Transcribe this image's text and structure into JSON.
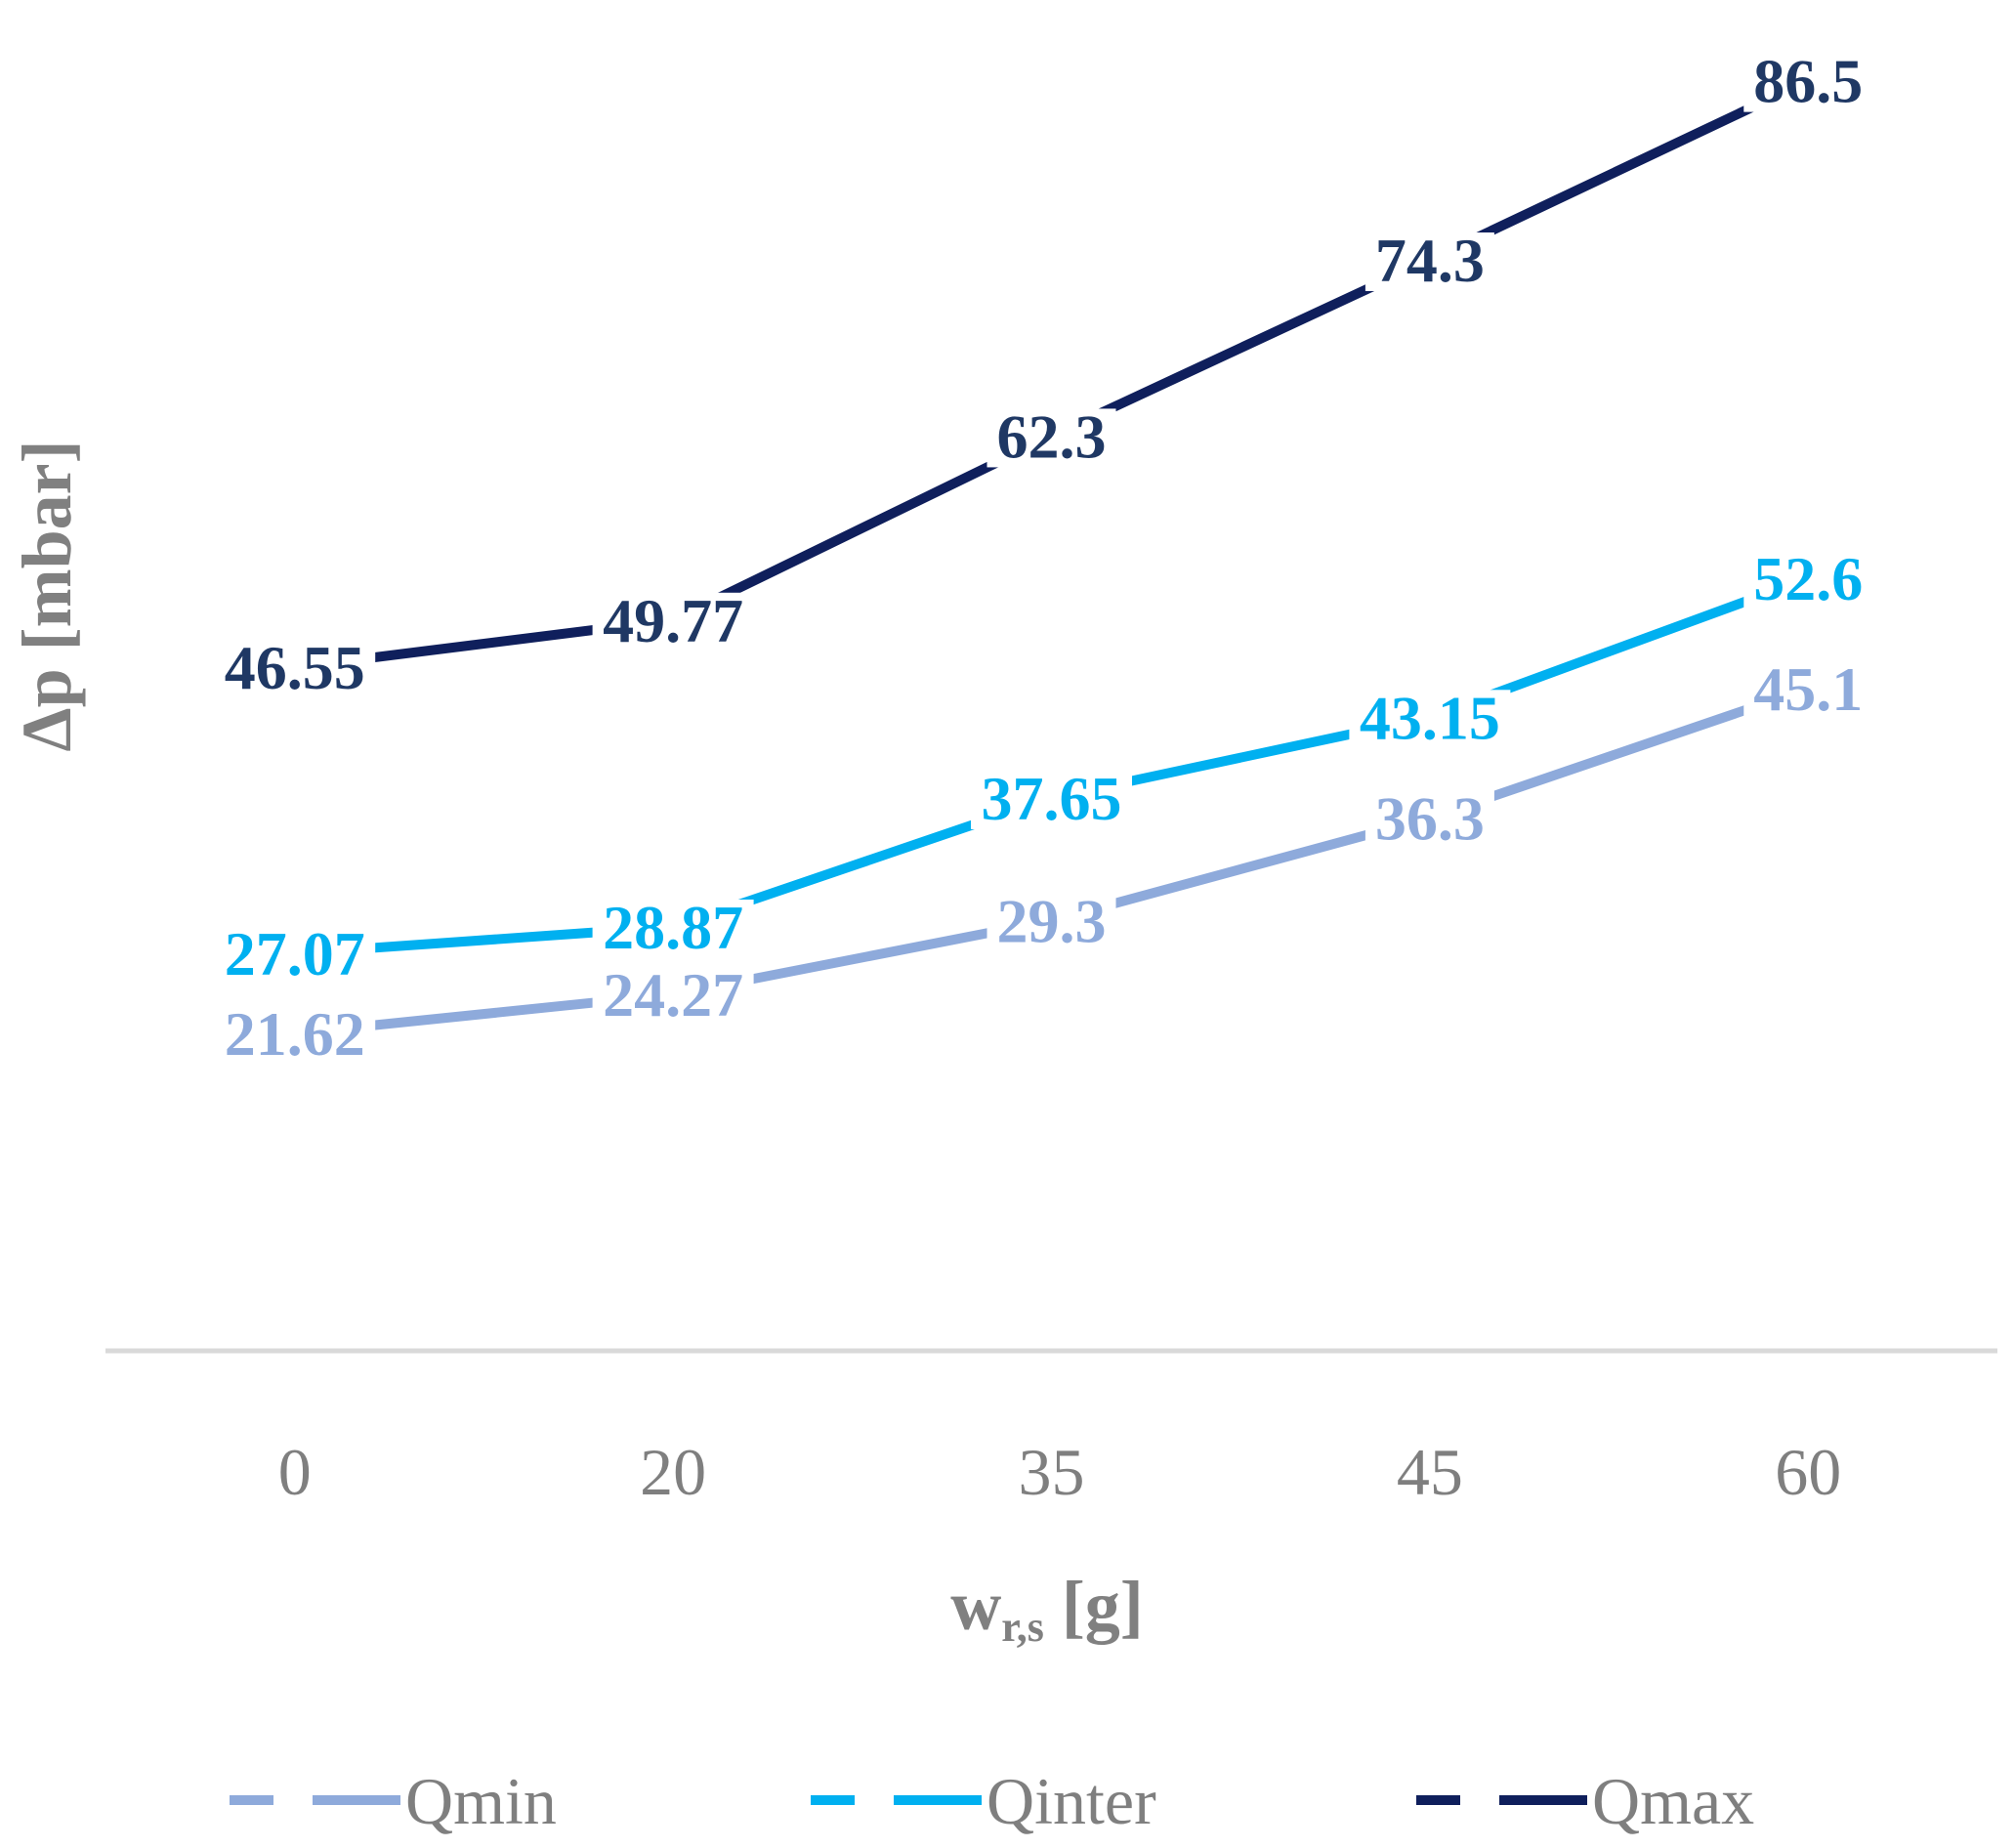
{
  "chart_data": {
    "type": "line",
    "title": "",
    "categories": [
      "0",
      "20",
      "35",
      "45",
      "60"
    ],
    "series": [
      {
        "name": "Qmin",
        "color": "#8eaadb",
        "label_color": "#8eaadb",
        "values": [
          21.62,
          24.27,
          29.3,
          36.3,
          45.1
        ],
        "labels": [
          "21.62",
          "24.27",
          "29.3",
          "36.3",
          "45.1"
        ]
      },
      {
        "name": "Qinter",
        "color": "#00b0f0",
        "label_color": "#00b0f0",
        "values": [
          27.07,
          28.87,
          37.65,
          43.15,
          52.6
        ],
        "labels": [
          "27.07",
          "28.87",
          "37.65",
          "43.15",
          "52.6"
        ]
      },
      {
        "name": "Qmax",
        "color": "#0f1f5c",
        "label_color": "#1f3864",
        "values": [
          46.55,
          49.77,
          62.3,
          74.3,
          86.5
        ],
        "labels": [
          "46.55",
          "49.77",
          "62.3",
          "74.3",
          "86.5"
        ]
      }
    ],
    "xlabel": {
      "main": "w",
      "sub": "r,s",
      "unit": " [g]"
    },
    "ylabel": "Δp [mbar]",
    "ylim": [
      0,
      90
    ],
    "grid": false,
    "legend": "bottom"
  }
}
